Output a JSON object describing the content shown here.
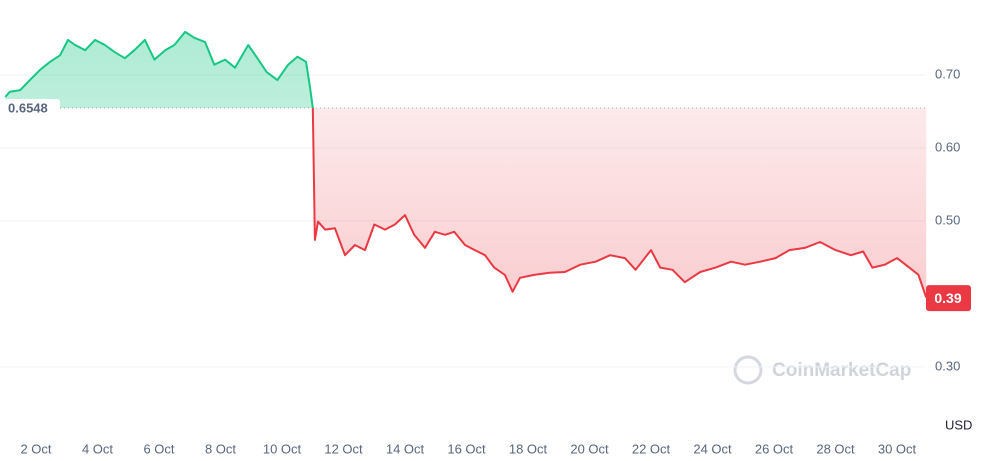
{
  "chart_data": {
    "type": "line",
    "x": [
      1.0,
      1.15,
      1.48,
      1.8,
      2.13,
      2.46,
      2.78,
      3.04,
      3.27,
      3.6,
      3.92,
      4.24,
      4.57,
      4.89,
      5.2,
      5.54,
      5.85,
      6.2,
      6.5,
      6.85,
      7.15,
      7.5,
      7.8,
      8.15,
      8.47,
      8.9,
      9.2,
      9.5,
      9.85,
      10.2,
      10.5,
      10.78,
      10.9,
      11.0,
      11.07,
      11.17,
      11.4,
      11.72,
      12.05,
      12.37,
      12.7,
      13.0,
      13.35,
      13.67,
      14.0,
      14.3,
      14.65,
      14.97,
      15.3,
      15.6,
      15.95,
      16.27,
      16.6,
      16.9,
      17.25,
      17.5,
      17.74,
      18.2,
      18.7,
      19.2,
      19.7,
      20.2,
      20.67,
      21.15,
      21.5,
      22.0,
      22.3,
      22.7,
      23.1,
      23.6,
      24.1,
      24.6,
      25.06,
      25.55,
      26.05,
      26.5,
      27.0,
      27.5,
      28.0,
      28.5,
      28.9,
      29.2,
      29.6,
      30.0,
      30.4,
      30.7,
      30.95
    ],
    "series": [
      {
        "name": "USD",
        "color": "#16c784",
        "color_below": "#ea3943",
        "values": [
          0.67,
          0.677,
          0.679,
          0.693,
          0.707,
          0.718,
          0.727,
          0.748,
          0.741,
          0.734,
          0.748,
          0.741,
          0.731,
          0.723,
          0.734,
          0.748,
          0.721,
          0.734,
          0.741,
          0.759,
          0.751,
          0.745,
          0.714,
          0.721,
          0.71,
          0.741,
          0.723,
          0.704,
          0.693,
          0.714,
          0.725,
          0.718,
          0.686,
          0.655,
          0.474,
          0.499,
          0.488,
          0.49,
          0.453,
          0.467,
          0.46,
          0.495,
          0.488,
          0.495,
          0.508,
          0.481,
          0.463,
          0.485,
          0.481,
          0.485,
          0.467,
          0.46,
          0.453,
          0.436,
          0.426,
          0.403,
          0.422,
          0.426,
          0.429,
          0.43,
          0.44,
          0.444,
          0.453,
          0.449,
          0.433,
          0.46,
          0.436,
          0.433,
          0.416,
          0.43,
          0.436,
          0.444,
          0.44,
          0.444,
          0.449,
          0.46,
          0.463,
          0.471,
          0.46,
          0.453,
          0.458,
          0.436,
          0.44,
          0.449,
          0.436,
          0.426,
          0.395
        ]
      }
    ],
    "reference": 0.6548,
    "current_price": 0.39,
    "unit": "USD",
    "watermark": "CoinMarketCap",
    "xlim": [
      0.95,
      31.0
    ],
    "xticks": [
      {
        "value": 2,
        "label": "2 Oct"
      },
      {
        "value": 4,
        "label": "4 Oct"
      },
      {
        "value": 6,
        "label": "6 Oct"
      },
      {
        "value": 8,
        "label": "8 Oct"
      },
      {
        "value": 10,
        "label": "10 Oct"
      },
      {
        "value": 12,
        "label": "12 Oct"
      },
      {
        "value": 14,
        "label": "14 Oct"
      },
      {
        "value": 16,
        "label": "16 Oct"
      },
      {
        "value": 18,
        "label": "18 Oct"
      },
      {
        "value": 20,
        "label": "20 Oct"
      },
      {
        "value": 22,
        "label": "22 Oct"
      },
      {
        "value": 24,
        "label": "24 Oct"
      },
      {
        "value": 26,
        "label": "26 Oct"
      },
      {
        "value": 28,
        "label": "28 Oct"
      },
      {
        "value": 30,
        "label": "30 Oct"
      }
    ],
    "ylim": [
      0.26,
      0.8
    ],
    "yticks": [
      {
        "value": 0.7,
        "label": "0.70"
      },
      {
        "value": 0.6,
        "label": "0.60"
      },
      {
        "value": 0.5,
        "label": "0.50"
      },
      {
        "value": 0.3,
        "label": "0.30"
      }
    ],
    "grid": true
  }
}
